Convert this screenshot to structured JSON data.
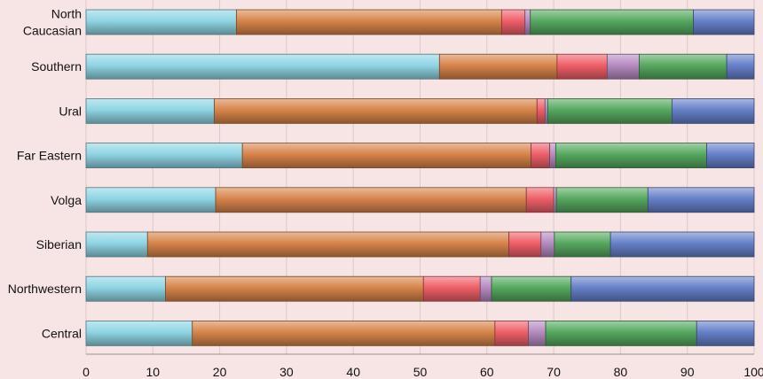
{
  "chart_data": {
    "type": "bar",
    "orientation": "horizontal",
    "stacked": true,
    "categories": [
      [
        "North",
        "Caucasian"
      ],
      [
        "Southern"
      ],
      [
        "Ural"
      ],
      [
        "Far Eastern"
      ],
      [
        "Volga"
      ],
      [
        "Siberian"
      ],
      [
        "Northwestern"
      ],
      [
        "Central"
      ]
    ],
    "series": [
      {
        "color": "#8fd5e4",
        "values": [
          22.5,
          52.9,
          19.2,
          23.4,
          19.4,
          9.2,
          11.9,
          15.9
        ]
      },
      {
        "color": "#d7844a",
        "values": [
          39.7,
          17.6,
          48.3,
          43.2,
          46.5,
          54.1,
          38.6,
          45.3
        ]
      },
      {
        "color": "#ef5f68",
        "values": [
          3.5,
          7.5,
          1.2,
          2.8,
          4.1,
          4.8,
          8.5,
          5.0
        ]
      },
      {
        "color": "#b58bc1",
        "values": [
          0.8,
          4.8,
          0.4,
          0.9,
          0.4,
          2.0,
          1.7,
          2.6
        ]
      },
      {
        "color": "#56a85f",
        "values": [
          24.4,
          13.1,
          18.6,
          22.6,
          13.7,
          8.4,
          11.9,
          22.6
        ]
      },
      {
        "color": "#6680c9",
        "values": [
          9.1,
          4.1,
          12.3,
          7.1,
          15.9,
          21.5,
          27.4,
          8.6
        ]
      }
    ],
    "xlim": [
      0,
      100
    ],
    "xticks": [
      "0",
      "10",
      "20",
      "30",
      "40",
      "50",
      "60",
      "70",
      "80",
      "90",
      "100"
    ],
    "grid": true,
    "legend": "none"
  }
}
